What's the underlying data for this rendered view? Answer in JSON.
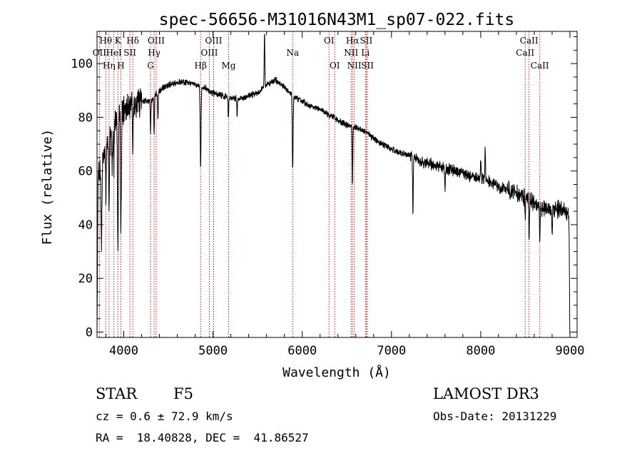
{
  "chart_data": {
    "type": "line",
    "title": "spec-56656-M31016N43M1_sp07-022.fits",
    "xlabel": "Wavelength (Å)",
    "ylabel": "Flux (relative)",
    "xlim": [
      3700,
      9080
    ],
    "ylim": [
      -2,
      112
    ],
    "xticks": [
      4000,
      5000,
      6000,
      7000,
      8000,
      9000
    ],
    "yticks": [
      0,
      20,
      40,
      60,
      80,
      100
    ],
    "grid": false,
    "continuum": [
      [
        3700,
        55
      ],
      [
        3750,
        62
      ],
      [
        3800,
        68
      ],
      [
        3850,
        72
      ],
      [
        3900,
        78
      ],
      [
        3950,
        82
      ],
      [
        4000,
        83
      ],
      [
        4100,
        85
      ],
      [
        4200,
        86
      ],
      [
        4300,
        86
      ],
      [
        4400,
        90
      ],
      [
        4500,
        92
      ],
      [
        4600,
        93
      ],
      [
        4700,
        93
      ],
      [
        4800,
        92
      ],
      [
        4900,
        91
      ],
      [
        5000,
        89
      ],
      [
        5100,
        88
      ],
      [
        5200,
        87
      ],
      [
        5300,
        87
      ],
      [
        5400,
        88
      ],
      [
        5500,
        89
      ],
      [
        5600,
        92
      ],
      [
        5700,
        94
      ],
      [
        5800,
        91
      ],
      [
        5900,
        88
      ],
      [
        6000,
        86
      ],
      [
        6100,
        84
      ],
      [
        6200,
        83
      ],
      [
        6300,
        81
      ],
      [
        6400,
        79
      ],
      [
        6500,
        77
      ],
      [
        6600,
        76
      ],
      [
        6700,
        75
      ],
      [
        6800,
        72
      ],
      [
        6900,
        70
      ],
      [
        7000,
        68
      ],
      [
        7100,
        67
      ],
      [
        7200,
        66
      ],
      [
        7300,
        64
      ],
      [
        7400,
        63
      ],
      [
        7500,
        62
      ],
      [
        7600,
        61
      ],
      [
        7700,
        60
      ],
      [
        7800,
        59
      ],
      [
        7900,
        58
      ],
      [
        8000,
        57
      ],
      [
        8100,
        56
      ],
      [
        8200,
        54
      ],
      [
        8300,
        53
      ],
      [
        8400,
        52
      ],
      [
        8500,
        50
      ],
      [
        8600,
        48
      ],
      [
        8700,
        46
      ],
      [
        8800,
        46
      ],
      [
        8900,
        46
      ],
      [
        8990,
        44
      ]
    ],
    "absorption_features": [
      [
        3700,
        -55
      ],
      [
        3750,
        -30
      ],
      [
        3800,
        -20
      ],
      [
        3835,
        -22
      ],
      [
        3870,
        -12
      ],
      [
        3889,
        -15
      ],
      [
        3934,
        -50
      ],
      [
        3968,
        -45
      ],
      [
        4101,
        -18
      ],
      [
        4300,
        -12
      ],
      [
        4340,
        -14
      ],
      [
        4383,
        -10
      ],
      [
        4861,
        -30
      ],
      [
        5172,
        -8
      ],
      [
        5270,
        -6
      ],
      [
        5893,
        -28
      ],
      [
        6563,
        -22
      ],
      [
        7240,
        -20
      ],
      [
        7600,
        -8
      ],
      [
        8498,
        -8
      ],
      [
        8542,
        -14
      ],
      [
        8662,
        -14
      ],
      [
        8800,
        -10
      ],
      [
        9000,
        -44
      ]
    ],
    "emission_features": [
      [
        5577,
        22
      ],
      [
        8000,
        8
      ],
      [
        8050,
        12
      ]
    ],
    "line_markers": [
      {
        "label": "Hθ",
        "wavelength": 3798,
        "row": 1
      },
      {
        "label": "OII",
        "wavelength": 3727,
        "row": 2
      },
      {
        "label": "Hη",
        "wavelength": 3835,
        "row": 3
      },
      {
        "label": "K",
        "wavelength": 3934,
        "row": 1
      },
      {
        "label": "HeI",
        "wavelength": 3889,
        "row": 2
      },
      {
        "label": "H",
        "wavelength": 3968,
        "row": 3
      },
      {
        "label": "Hδ",
        "wavelength": 4101,
        "row": 1
      },
      {
        "label": "SII",
        "wavelength": 4069,
        "row": 2
      },
      {
        "label": "OIII",
        "wavelength": 4363,
        "row": 1
      },
      {
        "label": "Hγ",
        "wavelength": 4340,
        "row": 2
      },
      {
        "label": "G",
        "wavelength": 4300,
        "row": 3
      },
      {
        "label": "Hβ",
        "wavelength": 4861,
        "row": 3
      },
      {
        "label": "OIII",
        "wavelength": 4959,
        "row": 2
      },
      {
        "label": "OIII",
        "wavelength": 5007,
        "row": 1
      },
      {
        "label": "Mg",
        "wavelength": 5175,
        "row": 3
      },
      {
        "label": "Na",
        "wavelength": 5893,
        "row": 2
      },
      {
        "label": "OI",
        "wavelength": 6300,
        "row": 1
      },
      {
        "label": "OI",
        "wavelength": 6364,
        "row": 3
      },
      {
        "label": "Hα",
        "wavelength": 6563,
        "row": 1
      },
      {
        "label": "NII",
        "wavelength": 6548,
        "row": 2
      },
      {
        "label": "NII",
        "wavelength": 6583,
        "row": 3
      },
      {
        "label": "SII",
        "wavelength": 6717,
        "row": 1
      },
      {
        "label": "Li",
        "wavelength": 6708,
        "row": 2
      },
      {
        "label": "SII",
        "wavelength": 6731,
        "row": 3
      },
      {
        "label": "CaII",
        "wavelength": 8542,
        "row": 1
      },
      {
        "label": "CaII",
        "wavelength": 8498,
        "row": 2
      },
      {
        "label": "CaII",
        "wavelength": 8662,
        "row": 3
      }
    ]
  },
  "info": {
    "class_label": "STAR",
    "subclass": "F5",
    "survey": "LAMOST DR3",
    "redshift_line": "cz = 0.6 ± 72.9 km/s",
    "obs_date_line": "Obs-Date: 20131229",
    "coords_line": "RA =  18.40828, DEC =  41.86527"
  },
  "colors": {
    "axes": "#000000",
    "spectrum": "#000000",
    "line_marker": "#cc0000",
    "background": "#ffffff"
  }
}
